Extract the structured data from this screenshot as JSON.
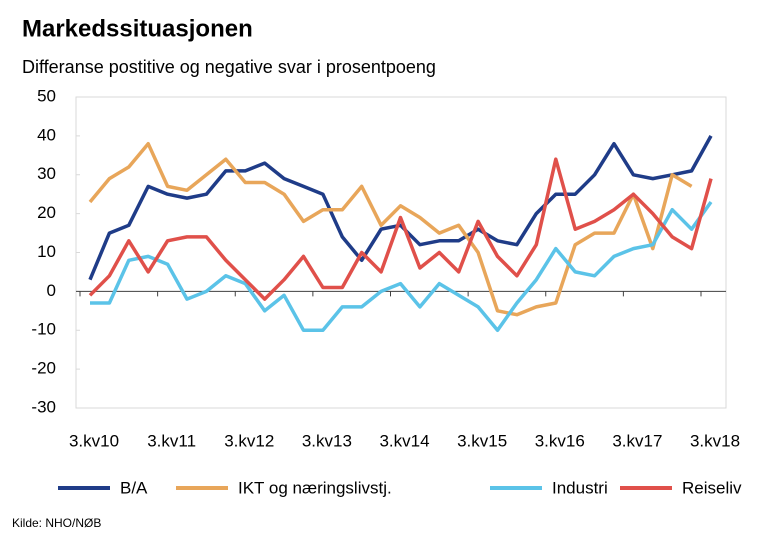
{
  "chart_data": {
    "type": "line",
    "title": "Markedssituasjonen",
    "subtitle": "Differanse postitive og negative svar i prosentpoeng",
    "source": "Kilde: NHO/NØB",
    "categories": [
      "3.kv10",
      null,
      null,
      null,
      "3.kv11",
      null,
      null,
      null,
      "3.kv12",
      null,
      null,
      null,
      "3.kv13",
      null,
      null,
      null,
      "3.kv14",
      null,
      null,
      null,
      "3.kv15",
      null,
      null,
      null,
      "3.kv16",
      null,
      null,
      null,
      "3.kv17",
      null,
      null,
      null,
      "3.kv18"
    ],
    "ylim": [
      -30,
      50
    ],
    "yticks": [
      -30,
      -20,
      -10,
      0,
      10,
      20,
      30,
      40,
      50
    ],
    "series": [
      {
        "name": "B/A",
        "color": "#1f3c88",
        "values": [
          3,
          15,
          17,
          27,
          25,
          24,
          25,
          31,
          31,
          33,
          29,
          27,
          25,
          14,
          8,
          16,
          17,
          12,
          13,
          13,
          16,
          13,
          12,
          20,
          25,
          25,
          30,
          38,
          30,
          29,
          30,
          31,
          40
        ]
      },
      {
        "name": "IKT og næringslivstj.",
        "color": "#e8a65a",
        "values": [
          23,
          29,
          32,
          38,
          27,
          26,
          30,
          34,
          28,
          28,
          25,
          18,
          21,
          21,
          27,
          17,
          22,
          19,
          15,
          17,
          10,
          -5,
          -6,
          -4,
          -3,
          12,
          15,
          15,
          25,
          11,
          30,
          27,
          null
        ]
      },
      {
        "name": "Industri",
        "color": "#5bc3e8",
        "values": [
          -3,
          -3,
          8,
          9,
          7,
          -2,
          0,
          4,
          2,
          -5,
          -1,
          -10,
          -10,
          -4,
          -4,
          0,
          2,
          -4,
          2,
          -1,
          -4,
          -10,
          -3,
          3,
          11,
          5,
          4,
          9,
          11,
          12,
          21,
          16,
          23
        ]
      },
      {
        "name": "Reiseliv",
        "color": "#e0504a",
        "values": [
          -1,
          4,
          13,
          5,
          13,
          14,
          14,
          8,
          3,
          -2,
          3,
          9,
          1,
          1,
          10,
          5,
          19,
          6,
          10,
          5,
          18,
          9,
          4,
          12,
          34,
          16,
          18,
          21,
          25,
          20,
          14,
          11,
          29
        ]
      }
    ]
  }
}
